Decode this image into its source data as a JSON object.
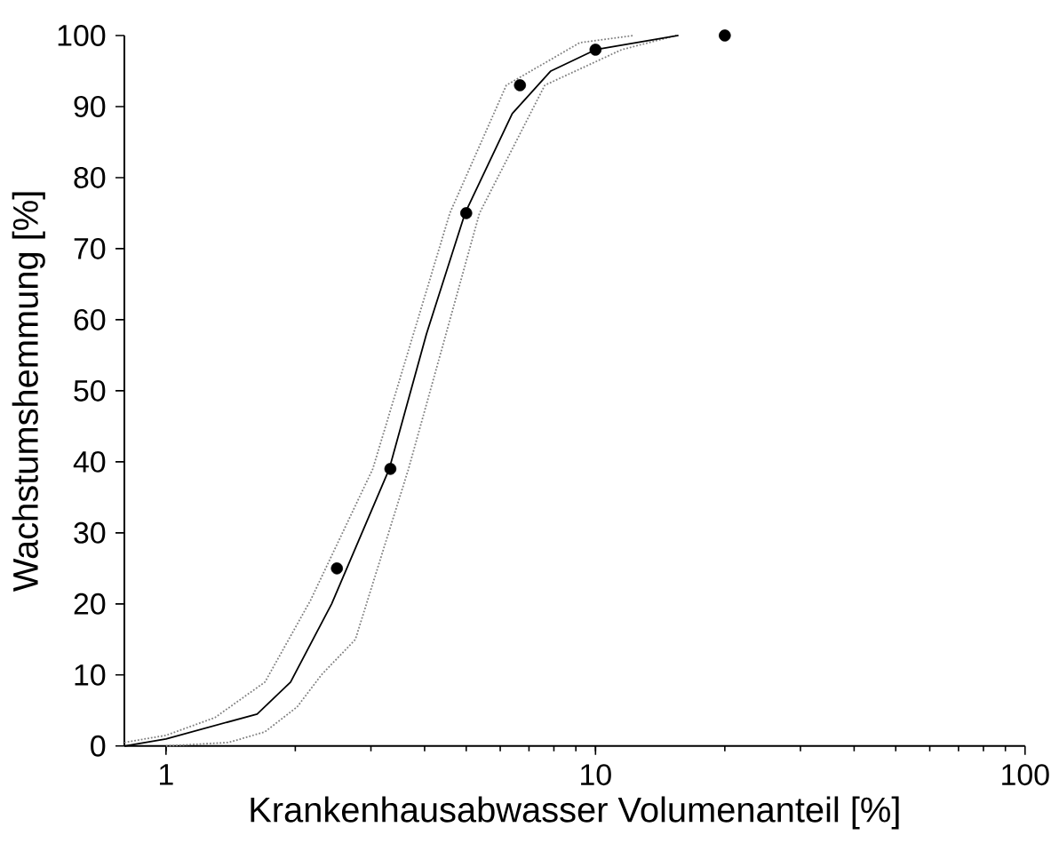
{
  "chart_data": {
    "type": "line",
    "xlabel": "Krankenhausabwasser Volumenanteil [%]",
    "ylabel": "Wachstumshemmung [%]",
    "log": "x",
    "xlim": [
      0.8,
      100
    ],
    "ylim": [
      0,
      100
    ],
    "xticks": [
      1,
      10,
      100
    ],
    "yticks": [
      0,
      10,
      20,
      30,
      40,
      50,
      60,
      70,
      80,
      90,
      100
    ],
    "grid": false,
    "marker": "none",
    "series": [
      {
        "line_style": "dotted",
        "color": "#808080",
        "x": [
          0.8,
          1,
          1.3,
          1.7,
          2.17,
          3.03,
          4.58,
          6.2,
          9.2,
          12.3
        ],
        "values": [
          0.5,
          1.5,
          4,
          9,
          20.5,
          39,
          75,
          93,
          99,
          100
        ]
      },
      {
        "line_style": "dotted",
        "color": "#808080",
        "x": [
          1,
          1.4,
          1.7,
          2.02,
          2.3,
          2.76,
          3.67,
          5.37,
          7.62,
          11.5,
          15.4
        ],
        "values": [
          0,
          0.5,
          2,
          5.5,
          10,
          15,
          39,
          75,
          93,
          98,
          100
        ]
      },
      {
        "line_style": "solid",
        "color": "#000000",
        "x": [
          0.8,
          1,
          1.63,
          1.95,
          2.43,
          3.31,
          4.04,
          4.97,
          6.4,
          7.87,
          10,
          15.6
        ],
        "values": [
          0,
          1,
          4.5,
          9,
          20,
          39,
          58,
          75,
          89,
          95,
          98,
          100
        ]
      },
      {
        "type": "scatter",
        "marker": "circle",
        "line_style": "none",
        "color": "#000000",
        "x": [
          2.5,
          3.33,
          5,
          6.67,
          10,
          20
        ],
        "values": [
          25,
          39,
          75,
          93,
          98,
          100
        ]
      }
    ]
  }
}
